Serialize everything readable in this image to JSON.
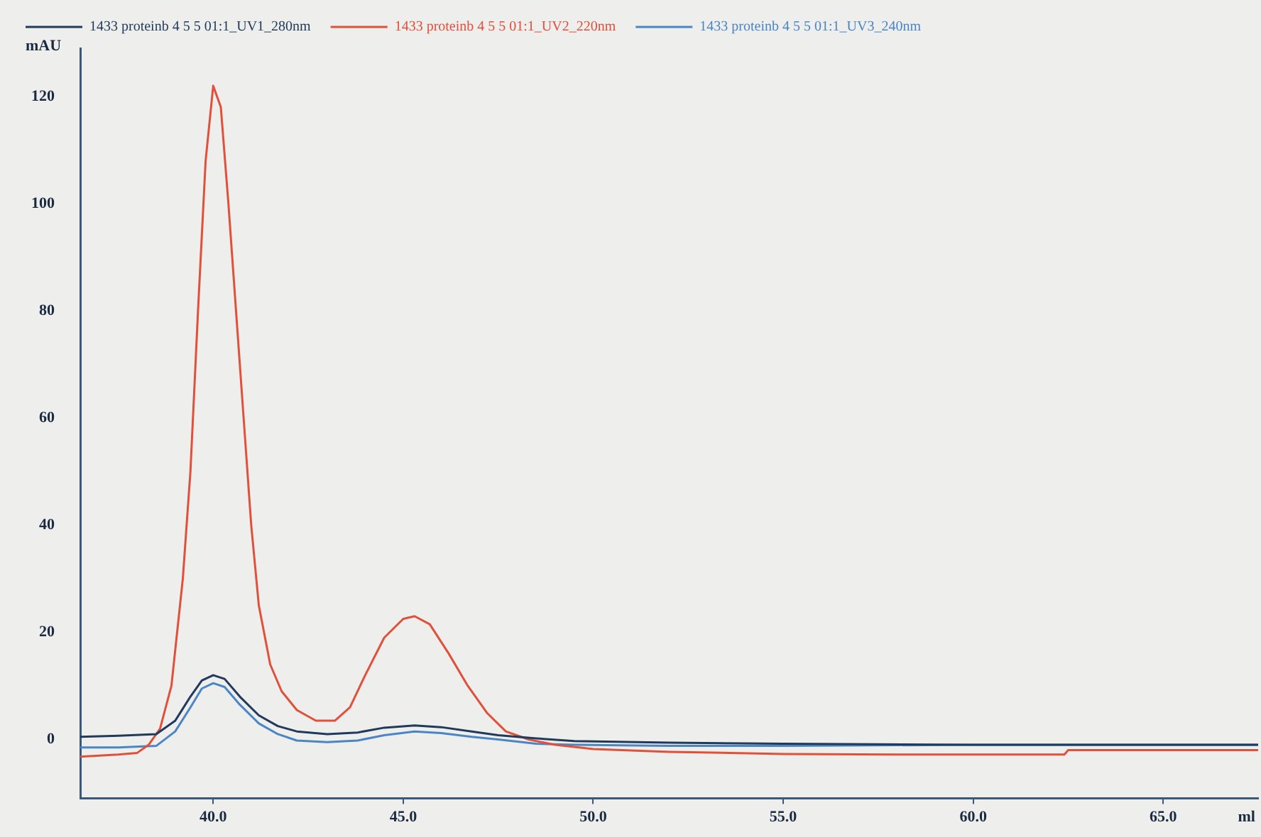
{
  "chart_data": {
    "type": "line",
    "xlabel": "ml",
    "ylabel": "mAU",
    "xlim": [
      36.5,
      67.5
    ],
    "ylim": [
      -11,
      129
    ],
    "xticks": [
      {
        "value": 40,
        "label": "40.0"
      },
      {
        "value": 45,
        "label": "45.0"
      },
      {
        "value": 50,
        "label": "50.0"
      },
      {
        "value": 55,
        "label": "55.0"
      },
      {
        "value": 60,
        "label": "60.0"
      },
      {
        "value": 65,
        "label": "65.0"
      }
    ],
    "yticks": [
      0,
      20,
      40,
      60,
      80,
      100,
      120
    ],
    "grid": false,
    "legend": "top left",
    "marker": "none",
    "line_style": "solid",
    "series": [
      {
        "name": "1433 proteinb 4 5 5 01:1_UV1_280nm",
        "color": "#1f3a5a",
        "x": [
          36.5,
          37.5,
          38.5,
          39.0,
          39.4,
          39.7,
          40.0,
          40.3,
          40.7,
          41.2,
          41.7,
          42.2,
          43.0,
          43.8,
          44.5,
          45.3,
          46.0,
          46.8,
          47.5,
          48.5,
          49.5,
          52,
          55,
          60,
          65,
          67.5
        ],
        "values": [
          0.5,
          0.7,
          1.0,
          3.5,
          8,
          11,
          12,
          11.3,
          8,
          4.5,
          2.5,
          1.5,
          1.0,
          1.3,
          2.2,
          2.6,
          2.3,
          1.5,
          0.8,
          0.2,
          -0.3,
          -0.6,
          -0.8,
          -1.0,
          -1.0,
          -1.0
        ]
      },
      {
        "name": "1433 proteinb 4 5 5 01:1_UV2_220nm",
        "color": "#e0503a",
        "x": [
          36.5,
          37.5,
          38.0,
          38.3,
          38.6,
          38.9,
          39.2,
          39.4,
          39.6,
          39.8,
          40.0,
          40.2,
          40.4,
          40.6,
          40.8,
          41.0,
          41.2,
          41.5,
          41.8,
          42.2,
          42.7,
          43.2,
          43.6,
          44.0,
          44.5,
          45.0,
          45.3,
          45.7,
          46.2,
          46.7,
          47.2,
          47.7,
          48.3,
          49.0,
          50,
          52,
          55,
          58,
          60,
          62.4,
          62.5,
          65,
          67.5
        ],
        "values": [
          -3.2,
          -2.8,
          -2.5,
          -1,
          2,
          10,
          30,
          50,
          80,
          108,
          122,
          118,
          100,
          80,
          60,
          40,
          25,
          14,
          9,
          5.5,
          3.5,
          3.5,
          6,
          12,
          19,
          22.5,
          23,
          21.5,
          16,
          10,
          5,
          1.5,
          0,
          -1,
          -1.8,
          -2.3,
          -2.7,
          -2.8,
          -2.8,
          -2.8,
          -2.0,
          -2.0,
          -2.0
        ]
      },
      {
        "name": "1433 proteinb 4 5 5 01:1_UV3_240nm",
        "color": "#4a86c5",
        "x": [
          36.5,
          37.5,
          38.5,
          39.0,
          39.4,
          39.7,
          40.0,
          40.3,
          40.7,
          41.2,
          41.7,
          42.2,
          43.0,
          43.8,
          44.5,
          45.3,
          46.0,
          46.8,
          47.5,
          48.5,
          49.5,
          52,
          55,
          60,
          65,
          67.5
        ],
        "values": [
          -1.5,
          -1.5,
          -1.2,
          1.5,
          6,
          9.5,
          10.5,
          9.8,
          6.5,
          3,
          1,
          -0.2,
          -0.5,
          -0.2,
          0.8,
          1.5,
          1.2,
          0.5,
          0,
          -0.8,
          -1.0,
          -1.2,
          -1.2,
          -1.0,
          -1.0,
          -1.0
        ]
      }
    ]
  }
}
